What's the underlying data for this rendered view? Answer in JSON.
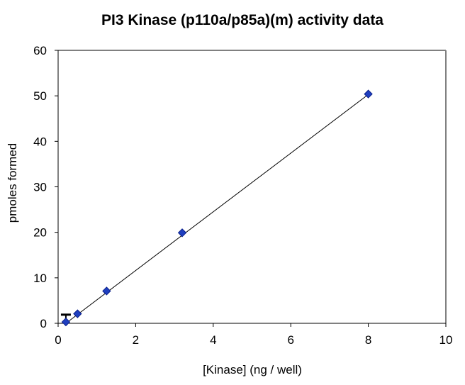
{
  "chart_data": {
    "type": "scatter",
    "title": "PI3 Kinase (p110a/p85a)(m) activity data",
    "xlabel": "[Kinase] (ng / well)",
    "ylabel": "pmoles formed",
    "xlim": [
      0,
      10
    ],
    "ylim": [
      0,
      60
    ],
    "x_ticks": [
      "0",
      "2",
      "4",
      "6",
      "8",
      "10"
    ],
    "y_ticks": [
      "0",
      "10",
      "20",
      "30",
      "40",
      "50",
      "60"
    ],
    "grid": false,
    "legend": "none",
    "marker": "diamond",
    "series": [
      {
        "x": [
          0.2,
          0.5,
          1.25,
          3.2,
          8.0
        ],
        "y": [
          0.3,
          2.1,
          7.1,
          19.9,
          50.4
        ],
        "error_bars": [
          {
            "x": 0.2,
            "y_low": 0.3,
            "y_high": 1.9
          }
        ],
        "fit_line": {
          "x": [
            0.2,
            8.0
          ],
          "y": [
            0.0,
            50.3
          ]
        }
      }
    ],
    "colors": {
      "marker": "#1f3fbf",
      "marker_edge": "#0a1f8a",
      "frame_right_top": "#808080",
      "axis": "#000000",
      "fit_line": "#000000"
    }
  }
}
